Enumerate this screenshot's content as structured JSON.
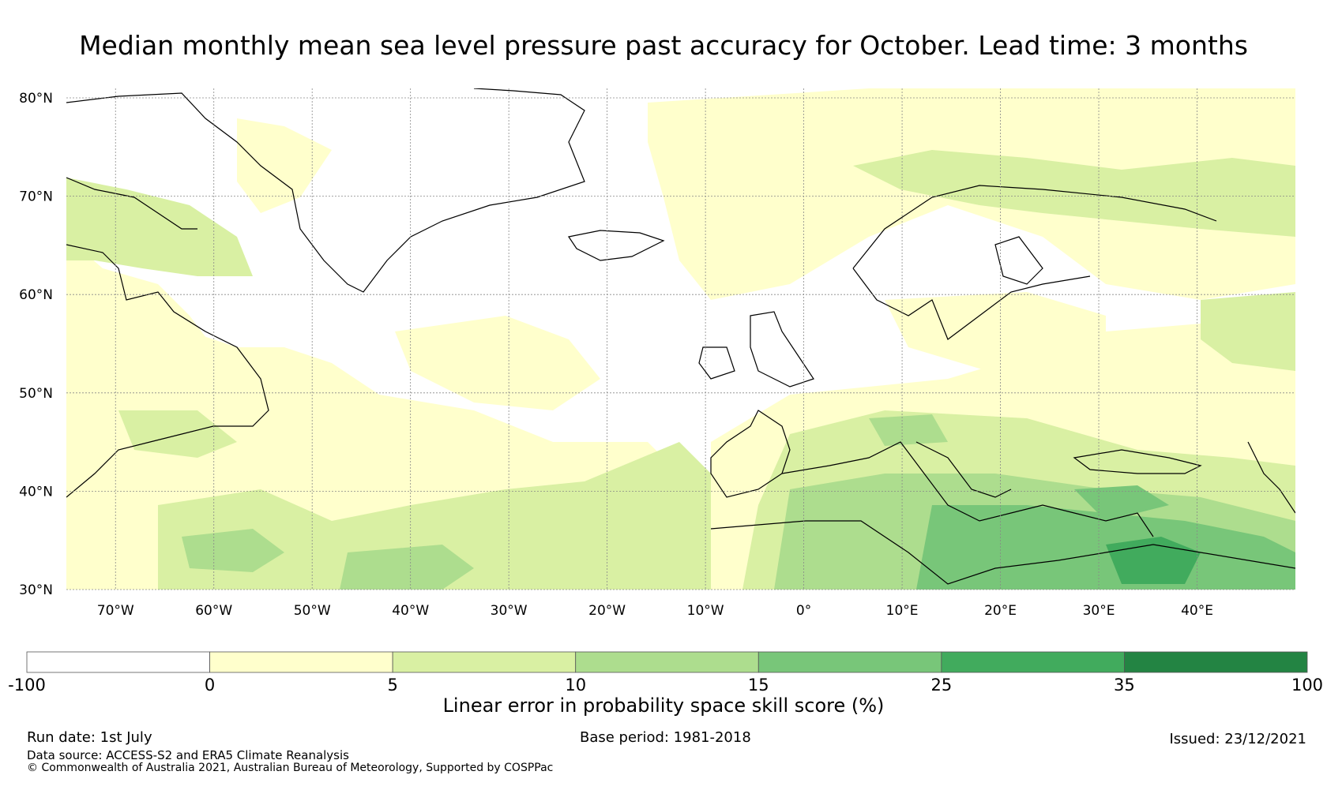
{
  "title": "Median monthly mean sea level pressure past accuracy for October. Lead time: 3 months",
  "map": {
    "lat_labels": [
      "80°N",
      "70°N",
      "60°N",
      "50°N",
      "40°N",
      "30°N"
    ],
    "lat_values": [
      80,
      70,
      60,
      50,
      40,
      30
    ],
    "lon_labels": [
      "70°W",
      "60°W",
      "50°W",
      "40°W",
      "30°W",
      "20°W",
      "10°W",
      "0°",
      "10°E",
      "20°E",
      "30°E",
      "40°E"
    ],
    "lon_values": [
      -70,
      -60,
      -50,
      -40,
      -30,
      -20,
      -10,
      0,
      10,
      20,
      30,
      40
    ],
    "extent": {
      "lon_min": -75,
      "lon_max": 50,
      "lat_min": 30,
      "lat_max": 81
    }
  },
  "colorbar": {
    "boundaries": [
      "-100",
      "0",
      "5",
      "10",
      "15",
      "25",
      "35",
      "100"
    ],
    "colors": [
      "#ffffff",
      "#ffffcc",
      "#d9f0a3",
      "#addd8e",
      "#78c679",
      "#41ab5d",
      "#238443"
    ],
    "label": "Linear error in probability space skill score (%)"
  },
  "footer": {
    "run_date": "Run date: 1st July",
    "base_period": "Base period: 1981-2018",
    "issued": "Issued: 23/12/2021",
    "data_source": "Data source: ACCESS-S2 and ERA5 Climate Reanalysis",
    "copyright": "© Commonwealth of Australia 2021, Australian Bureau of Meteorology, Supported by COSPPac"
  }
}
